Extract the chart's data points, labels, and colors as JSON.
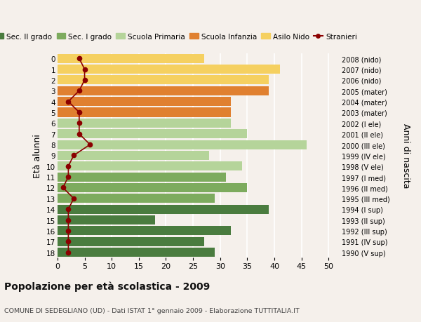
{
  "ages": [
    18,
    17,
    16,
    15,
    14,
    13,
    12,
    11,
    10,
    9,
    8,
    7,
    6,
    5,
    4,
    3,
    2,
    1,
    0
  ],
  "anni_nascita": [
    "1990 (V sup)",
    "1991 (IV sup)",
    "1992 (III sup)",
    "1993 (II sup)",
    "1994 (I sup)",
    "1995 (III med)",
    "1996 (II med)",
    "1997 (I med)",
    "1998 (V ele)",
    "1999 (IV ele)",
    "2000 (III ele)",
    "2001 (II ele)",
    "2002 (I ele)",
    "2003 (mater)",
    "2004 (mater)",
    "2005 (mater)",
    "2006 (nido)",
    "2007 (nido)",
    "2008 (nido)"
  ],
  "bar_values": [
    29,
    27,
    32,
    18,
    39,
    29,
    35,
    31,
    34,
    28,
    46,
    35,
    32,
    32,
    32,
    39,
    39,
    41,
    27
  ],
  "bar_colors": [
    "#4a7c3f",
    "#4a7c3f",
    "#4a7c3f",
    "#4a7c3f",
    "#4a7c3f",
    "#7dab5e",
    "#7dab5e",
    "#7dab5e",
    "#b5d49a",
    "#b5d49a",
    "#b5d49a",
    "#b5d49a",
    "#b5d49a",
    "#e08030",
    "#e08030",
    "#e08030",
    "#f5d060",
    "#f5d060",
    "#f5d060"
  ],
  "stranieri_values": [
    2,
    2,
    2,
    2,
    2,
    3,
    1,
    2,
    2,
    3,
    6,
    4,
    4,
    4,
    2,
    4,
    5,
    5,
    4
  ],
  "stranieri_color": "#8b0000",
  "legend_labels": [
    "Sec. II grado",
    "Sec. I grado",
    "Scuola Primaria",
    "Scuola Infanzia",
    "Asilo Nido",
    "Stranieri"
  ],
  "legend_colors": [
    "#4a7c3f",
    "#7dab5e",
    "#b5d49a",
    "#e08030",
    "#f5d060",
    "#8b0000"
  ],
  "ylabel": "Età alunni",
  "ylabel_right": "Anni di nascita",
  "title": "Popolazione per età scolastica - 2009",
  "subtitle": "COMUNE DI SEDEGLIANO (UD) - Dati ISTAT 1° gennaio 2009 - Elaborazione TUTTITALIA.IT",
  "xlim": [
    0,
    52
  ],
  "xticks": [
    0,
    5,
    10,
    15,
    20,
    25,
    30,
    35,
    40,
    45,
    50
  ],
  "background_color": "#f5f0eb",
  "grid_color": "#ffffff"
}
